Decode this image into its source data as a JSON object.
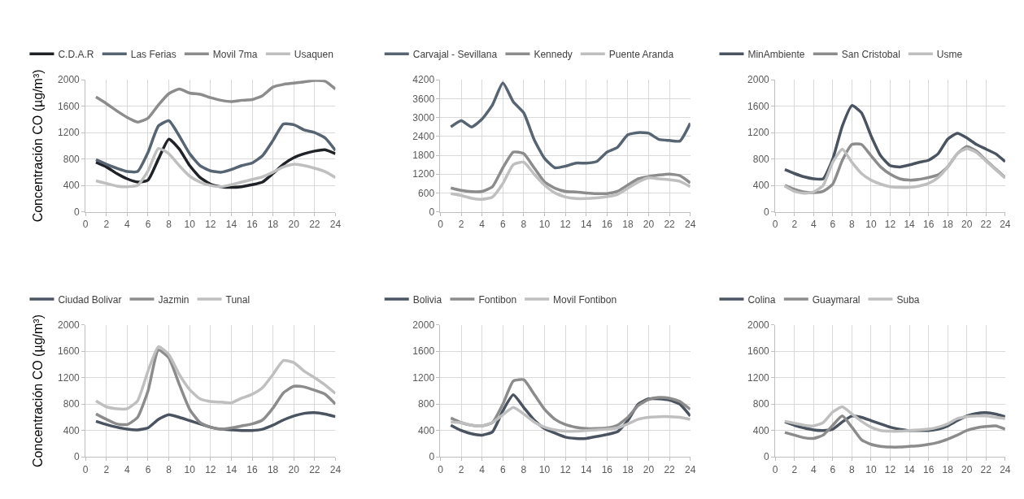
{
  "chart_data": [
    {
      "type": "line",
      "ylabel": "Concentración CO (µg/m³)",
      "x": [
        1,
        2,
        3,
        4,
        5,
        6,
        7,
        8,
        9,
        10,
        11,
        12,
        13,
        14,
        15,
        16,
        17,
        18,
        19,
        20,
        21,
        22,
        23,
        24
      ],
      "xlim": [
        0,
        24
      ],
      "xticks": [
        0,
        2,
        4,
        6,
        8,
        10,
        12,
        14,
        16,
        18,
        20,
        22,
        24
      ],
      "ylim": [
        0,
        2000
      ],
      "yticks": [
        0,
        400,
        800,
        1200,
        1600,
        2000
      ],
      "grid": true,
      "legend": "top",
      "series": [
        {
          "name": "C.D.A.R",
          "color": "#1f2226",
          "values": [
            750,
            680,
            580,
            500,
            450,
            480,
            800,
            1100,
            950,
            700,
            520,
            420,
            380,
            370,
            380,
            410,
            450,
            580,
            720,
            820,
            880,
            920,
            940,
            880
          ]
        },
        {
          "name": "Las Ferias",
          "color": "#576472",
          "values": [
            790,
            720,
            660,
            610,
            610,
            900,
            1300,
            1380,
            1150,
            880,
            700,
            620,
            600,
            640,
            700,
            740,
            850,
            1080,
            1330,
            1320,
            1240,
            1200,
            1120,
            930
          ]
        },
        {
          "name": "Movil 7ma",
          "color": "#8c8c8c",
          "values": [
            1740,
            1640,
            1530,
            1430,
            1360,
            1420,
            1620,
            1790,
            1860,
            1800,
            1780,
            1730,
            1690,
            1670,
            1690,
            1700,
            1760,
            1890,
            1930,
            1950,
            1970,
            1990,
            1980,
            1860
          ]
        },
        {
          "name": "Usaquen",
          "color": "#bfbfbf",
          "values": [
            470,
            430,
            390,
            380,
            400,
            620,
            960,
            880,
            700,
            540,
            450,
            400,
            380,
            410,
            450,
            490,
            530,
            600,
            680,
            720,
            700,
            660,
            610,
            520
          ]
        }
      ]
    },
    {
      "type": "line",
      "x": [
        1,
        2,
        3,
        4,
        5,
        6,
        7,
        8,
        9,
        10,
        11,
        12,
        13,
        14,
        15,
        16,
        17,
        18,
        19,
        20,
        21,
        22,
        23,
        24
      ],
      "xlim": [
        0,
        24
      ],
      "xticks": [
        0,
        2,
        4,
        6,
        8,
        10,
        12,
        14,
        16,
        18,
        20,
        22,
        24
      ],
      "ylim": [
        0,
        4200
      ],
      "yticks": [
        0,
        600,
        1200,
        1800,
        2400,
        3000,
        3600,
        4200
      ],
      "grid": true,
      "legend": "top",
      "series": [
        {
          "name": "Carvajal - Sevillana",
          "color": "#576472",
          "values": [
            2700,
            2900,
            2700,
            2950,
            3400,
            4100,
            3500,
            3150,
            2300,
            1700,
            1400,
            1450,
            1550,
            1550,
            1600,
            1900,
            2050,
            2450,
            2520,
            2500,
            2300,
            2270,
            2250,
            2820
          ]
        },
        {
          "name": "Kennedy",
          "color": "#8c8c8c",
          "values": [
            760,
            680,
            640,
            650,
            800,
            1400,
            1900,
            1850,
            1400,
            950,
            750,
            650,
            630,
            600,
            580,
            580,
            650,
            850,
            1050,
            1120,
            1170,
            1200,
            1150,
            920
          ]
        },
        {
          "name": "Puente Aranda",
          "color": "#bfbfbf",
          "values": [
            580,
            520,
            430,
            400,
            470,
            900,
            1500,
            1580,
            1200,
            850,
            600,
            470,
            420,
            420,
            440,
            480,
            550,
            750,
            950,
            1080,
            1050,
            1020,
            970,
            800
          ]
        }
      ]
    },
    {
      "type": "line",
      "x": [
        1,
        2,
        3,
        4,
        5,
        6,
        7,
        8,
        9,
        10,
        11,
        12,
        13,
        14,
        15,
        16,
        17,
        18,
        19,
        20,
        21,
        22,
        23,
        24
      ],
      "xlim": [
        0,
        24
      ],
      "xticks": [
        0,
        2,
        4,
        6,
        8,
        10,
        12,
        14,
        16,
        18,
        20,
        22,
        24
      ],
      "ylim": [
        0,
        2000
      ],
      "yticks": [
        0,
        400,
        800,
        1200,
        1600,
        2000
      ],
      "grid": true,
      "legend": "top",
      "series": [
        {
          "name": "MinAmbiente",
          "color": "#4a5360",
          "values": [
            640,
            580,
            530,
            500,
            500,
            800,
            1300,
            1610,
            1500,
            1150,
            850,
            700,
            680,
            710,
            750,
            780,
            880,
            1100,
            1190,
            1120,
            1020,
            950,
            880,
            760
          ]
        },
        {
          "name": "San Cristobal",
          "color": "#8c8c8c",
          "values": [
            400,
            340,
            300,
            290,
            310,
            420,
            780,
            1020,
            1020,
            850,
            680,
            570,
            500,
            480,
            490,
            520,
            560,
            680,
            880,
            990,
            920,
            780,
            650,
            520
          ]
        },
        {
          "name": "Usme",
          "color": "#bfbfbf",
          "values": [
            390,
            310,
            280,
            300,
            400,
            750,
            950,
            750,
            580,
            480,
            420,
            380,
            370,
            370,
            390,
            430,
            520,
            680,
            880,
            960,
            900,
            770,
            640,
            510
          ]
        }
      ]
    },
    {
      "type": "line",
      "ylabel": "Concentración CO (µg/m³)",
      "x": [
        1,
        2,
        3,
        4,
        5,
        6,
        7,
        8,
        9,
        10,
        11,
        12,
        13,
        14,
        15,
        16,
        17,
        18,
        19,
        20,
        21,
        22,
        23,
        24
      ],
      "xlim": [
        0,
        24
      ],
      "xticks": [
        0,
        2,
        4,
        6,
        8,
        10,
        12,
        14,
        16,
        18,
        20,
        22,
        24
      ],
      "ylim": [
        0,
        2000
      ],
      "yticks": [
        0,
        400,
        800,
        1200,
        1600,
        2000
      ],
      "grid": true,
      "legend": "top",
      "series": [
        {
          "name": "Ciudad Bolivar",
          "color": "#4a5360",
          "values": [
            540,
            490,
            450,
            420,
            410,
            440,
            570,
            640,
            600,
            550,
            500,
            450,
            420,
            410,
            400,
            400,
            420,
            480,
            560,
            620,
            660,
            670,
            650,
            610
          ]
        },
        {
          "name": "Jazmin",
          "color": "#8c8c8c",
          "values": [
            650,
            570,
            500,
            490,
            600,
            1000,
            1620,
            1500,
            1100,
            720,
            520,
            450,
            420,
            440,
            470,
            500,
            560,
            740,
            970,
            1070,
            1060,
            1010,
            950,
            800
          ]
        },
        {
          "name": "Tunal",
          "color": "#bfbfbf",
          "values": [
            850,
            760,
            730,
            730,
            850,
            1300,
            1670,
            1550,
            1250,
            1020,
            880,
            840,
            830,
            820,
            890,
            950,
            1050,
            1250,
            1460,
            1430,
            1300,
            1200,
            1090,
            960
          ]
        }
      ]
    },
    {
      "type": "line",
      "x": [
        1,
        2,
        3,
        4,
        5,
        6,
        7,
        8,
        9,
        10,
        11,
        12,
        13,
        14,
        15,
        16,
        17,
        18,
        19,
        20,
        21,
        22,
        23,
        24
      ],
      "xlim": [
        0,
        24
      ],
      "xticks": [
        0,
        2,
        4,
        6,
        8,
        10,
        12,
        14,
        16,
        18,
        20,
        22,
        24
      ],
      "ylim": [
        0,
        2000
      ],
      "yticks": [
        0,
        400,
        800,
        1200,
        1600,
        2000
      ],
      "grid": true,
      "legend": "top",
      "series": [
        {
          "name": "Bolivia",
          "color": "#4a5360",
          "values": [
            480,
            400,
            350,
            330,
            380,
            700,
            940,
            750,
            560,
            430,
            360,
            300,
            280,
            280,
            310,
            340,
            380,
            550,
            800,
            880,
            880,
            860,
            800,
            620
          ]
        },
        {
          "name": "Fontibon",
          "color": "#8c8c8c",
          "values": [
            590,
            520,
            480,
            470,
            520,
            800,
            1150,
            1170,
            950,
            720,
            570,
            490,
            450,
            430,
            430,
            440,
            480,
            600,
            780,
            870,
            900,
            890,
            840,
            720
          ]
        },
        {
          "name": "Movil Fontibon",
          "color": "#bfbfbf",
          "values": [
            530,
            520,
            480,
            470,
            520,
            640,
            750,
            650,
            530,
            450,
            410,
            390,
            390,
            400,
            410,
            420,
            440,
            500,
            570,
            600,
            610,
            610,
            600,
            570
          ]
        }
      ]
    },
    {
      "type": "line",
      "x": [
        1,
        2,
        3,
        4,
        5,
        6,
        7,
        8,
        9,
        10,
        11,
        12,
        13,
        14,
        15,
        16,
        17,
        18,
        19,
        20,
        21,
        22,
        23,
        24
      ],
      "xlim": [
        0,
        24
      ],
      "xticks": [
        0,
        2,
        4,
        6,
        8,
        10,
        12,
        14,
        16,
        18,
        20,
        22,
        24
      ],
      "ylim": [
        0,
        2000
      ],
      "yticks": [
        0,
        400,
        800,
        1200,
        1600,
        2000
      ],
      "grid": true,
      "legend": "top",
      "series": [
        {
          "name": "Colina",
          "color": "#4a5360",
          "values": [
            530,
            480,
            440,
            410,
            400,
            420,
            530,
            620,
            600,
            550,
            500,
            450,
            420,
            400,
            400,
            400,
            420,
            470,
            550,
            620,
            660,
            670,
            650,
            610
          ]
        },
        {
          "name": "Guaymaral",
          "color": "#8c8c8c",
          "values": [
            370,
            330,
            290,
            280,
            330,
            480,
            620,
            450,
            260,
            190,
            160,
            150,
            150,
            160,
            170,
            190,
            220,
            270,
            330,
            400,
            440,
            460,
            470,
            420
          ]
        },
        {
          "name": "Suba",
          "color": "#bfbfbf",
          "values": [
            540,
            510,
            480,
            470,
            520,
            680,
            760,
            650,
            540,
            450,
            400,
            390,
            390,
            400,
            410,
            420,
            450,
            500,
            580,
            610,
            620,
            620,
            600,
            580
          ]
        }
      ]
    }
  ]
}
